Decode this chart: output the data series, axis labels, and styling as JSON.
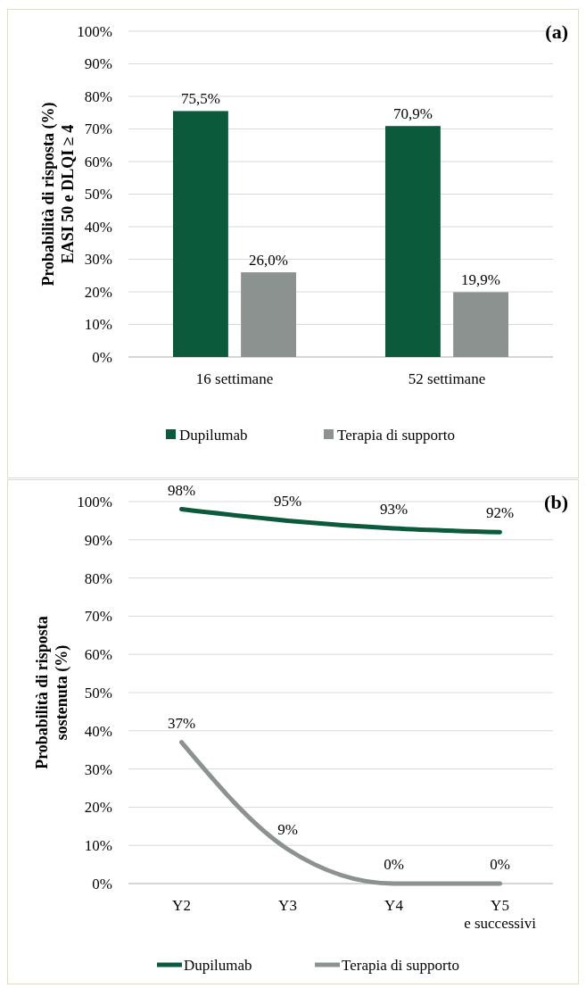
{
  "chart_data": [
    {
      "type": "bar",
      "ylabel": "Probabilità  di risposta (%)\nEASI 50 e DLQI ≥ 4",
      "categories": [
        "16 settimane",
        "52 settimane"
      ],
      "series": [
        {
          "name": "Dupilumab",
          "color": "#0b5a3c",
          "values": [
            75.5,
            70.9
          ],
          "value_labels": [
            "75,5%",
            "70,9%"
          ]
        },
        {
          "name": "Terapia di supporto",
          "color": "#8c9290",
          "values": [
            26.0,
            19.9
          ],
          "value_labels": [
            "26,0%",
            "19,9%"
          ]
        }
      ],
      "ylim": [
        0,
        100
      ],
      "yticks": [
        {
          "value": 0,
          "label": "0%"
        },
        {
          "value": 10,
          "label": "10%"
        },
        {
          "value": 20,
          "label": "20%"
        },
        {
          "value": 30,
          "label": "30%"
        },
        {
          "value": 40,
          "label": "40%"
        },
        {
          "value": 50,
          "label": "50%"
        },
        {
          "value": 60,
          "label": "60%"
        },
        {
          "value": 70,
          "label": "70%"
        },
        {
          "value": 80,
          "label": "80%"
        },
        {
          "value": 90,
          "label": "90%"
        },
        {
          "value": 100,
          "label": "100%"
        }
      ],
      "grid": "y",
      "legend": "bottom",
      "annotations": [
        "(a)"
      ]
    },
    {
      "type": "line",
      "ylabel": "Probabilità di risposta\nsostenuta (%)",
      "categories": [
        "Y2",
        "Y3",
        "Y4",
        "Y5\ne successivi"
      ],
      "series": [
        {
          "name": "Dupilumab",
          "color": "#0b5a3c",
          "values": [
            98,
            95,
            93,
            92
          ],
          "value_labels": [
            "98%",
            "95%",
            "93%",
            "92%"
          ]
        },
        {
          "name": "Terapia di supporto",
          "color": "#8c9290",
          "values": [
            37,
            9,
            0,
            0
          ],
          "value_labels": [
            "37%",
            "9%",
            "0%",
            "0%"
          ]
        }
      ],
      "ylim": [
        0,
        100
      ],
      "yticks": [
        {
          "value": 0,
          "label": "0%"
        },
        {
          "value": 10,
          "label": "10%"
        },
        {
          "value": 20,
          "label": "20%"
        },
        {
          "value": 30,
          "label": "30%"
        },
        {
          "value": 40,
          "label": "40%"
        },
        {
          "value": 50,
          "label": "50%"
        },
        {
          "value": 60,
          "label": "60%"
        },
        {
          "value": 70,
          "label": "70%"
        },
        {
          "value": 80,
          "label": "80%"
        },
        {
          "value": 90,
          "label": "90%"
        },
        {
          "value": 100,
          "label": "100%"
        }
      ],
      "grid": "y",
      "legend": "bottom",
      "marker": "none",
      "annotations": [
        "(b)"
      ]
    }
  ]
}
